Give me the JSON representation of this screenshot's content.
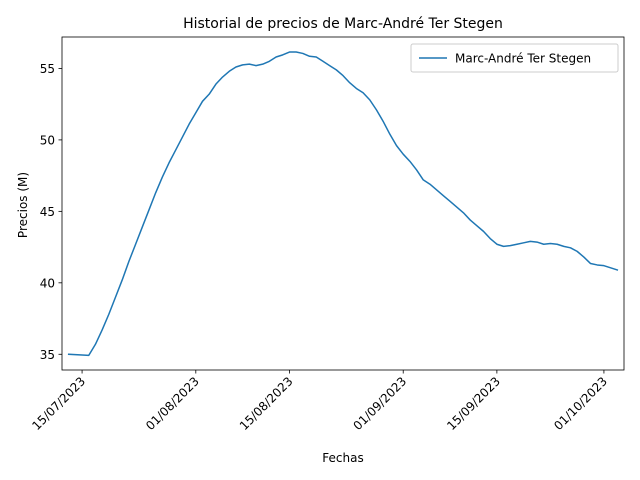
{
  "chart_data": {
    "type": "line",
    "title": "Historial de precios de Marc-André Ter Stegen",
    "xlabel": "Fechas",
    "ylabel": "Precios (M)",
    "x_ticks": [
      "15/07/2023",
      "01/08/2023",
      "15/08/2023",
      "01/09/2023",
      "15/09/2023",
      "01/10/2023"
    ],
    "y_ticks": [
      35,
      40,
      45,
      50,
      55
    ],
    "x_range": [
      "2023-07-12",
      "2023-10-04"
    ],
    "ylim": [
      33.9,
      57.2
    ],
    "grid": false,
    "legend": {
      "position": "top-right"
    },
    "series": [
      {
        "name": "Marc-André Ter Stegen",
        "color": "#1f77b4",
        "points": [
          [
            "2023-07-13",
            35.0
          ],
          [
            "2023-07-15",
            34.95
          ],
          [
            "2023-07-16",
            34.92
          ],
          [
            "2023-07-17",
            35.7
          ],
          [
            "2023-07-18",
            36.7
          ],
          [
            "2023-07-19",
            37.8
          ],
          [
            "2023-07-20",
            39.0
          ],
          [
            "2023-07-21",
            40.2
          ],
          [
            "2023-07-22",
            41.5
          ],
          [
            "2023-07-23",
            42.7
          ],
          [
            "2023-07-24",
            43.9
          ],
          [
            "2023-07-25",
            45.1
          ],
          [
            "2023-07-26",
            46.3
          ],
          [
            "2023-07-27",
            47.4
          ],
          [
            "2023-07-28",
            48.4
          ],
          [
            "2023-07-29",
            49.3
          ],
          [
            "2023-07-30",
            50.2
          ],
          [
            "2023-07-31",
            51.1
          ],
          [
            "2023-08-01",
            51.9
          ],
          [
            "2023-08-02",
            52.7
          ],
          [
            "2023-08-03",
            53.2
          ],
          [
            "2023-08-04",
            53.9
          ],
          [
            "2023-08-05",
            54.4
          ],
          [
            "2023-08-06",
            54.8
          ],
          [
            "2023-08-07",
            55.1
          ],
          [
            "2023-08-08",
            55.25
          ],
          [
            "2023-08-09",
            55.3
          ],
          [
            "2023-08-10",
            55.2
          ],
          [
            "2023-08-11",
            55.3
          ],
          [
            "2023-08-12",
            55.5
          ],
          [
            "2023-08-13",
            55.8
          ],
          [
            "2023-08-14",
            55.95
          ],
          [
            "2023-08-15",
            56.15
          ],
          [
            "2023-08-16",
            56.15
          ],
          [
            "2023-08-17",
            56.05
          ],
          [
            "2023-08-18",
            55.85
          ],
          [
            "2023-08-19",
            55.8
          ],
          [
            "2023-08-20",
            55.5
          ],
          [
            "2023-08-21",
            55.2
          ],
          [
            "2023-08-22",
            54.9
          ],
          [
            "2023-08-23",
            54.5
          ],
          [
            "2023-08-24",
            54.0
          ],
          [
            "2023-08-25",
            53.6
          ],
          [
            "2023-08-26",
            53.3
          ],
          [
            "2023-08-27",
            52.8
          ],
          [
            "2023-08-28",
            52.1
          ],
          [
            "2023-08-29",
            51.3
          ],
          [
            "2023-08-30",
            50.4
          ],
          [
            "2023-08-31",
            49.6
          ],
          [
            "2023-09-01",
            49.0
          ],
          [
            "2023-09-02",
            48.5
          ],
          [
            "2023-09-03",
            47.9
          ],
          [
            "2023-09-04",
            47.2
          ],
          [
            "2023-09-05",
            46.9
          ],
          [
            "2023-09-06",
            46.5
          ],
          [
            "2023-09-07",
            46.1
          ],
          [
            "2023-09-08",
            45.7
          ],
          [
            "2023-09-09",
            45.3
          ],
          [
            "2023-09-10",
            44.9
          ],
          [
            "2023-09-11",
            44.4
          ],
          [
            "2023-09-12",
            44.0
          ],
          [
            "2023-09-13",
            43.6
          ],
          [
            "2023-09-14",
            43.1
          ],
          [
            "2023-09-15",
            42.7
          ],
          [
            "2023-09-16",
            42.55
          ],
          [
            "2023-09-17",
            42.6
          ],
          [
            "2023-09-18",
            42.7
          ],
          [
            "2023-09-19",
            42.8
          ],
          [
            "2023-09-20",
            42.9
          ],
          [
            "2023-09-21",
            42.85
          ],
          [
            "2023-09-22",
            42.7
          ],
          [
            "2023-09-23",
            42.75
          ],
          [
            "2023-09-24",
            42.7
          ],
          [
            "2023-09-25",
            42.55
          ],
          [
            "2023-09-26",
            42.45
          ],
          [
            "2023-09-27",
            42.2
          ],
          [
            "2023-09-28",
            41.8
          ],
          [
            "2023-09-29",
            41.35
          ],
          [
            "2023-09-30",
            41.25
          ],
          [
            "2023-10-01",
            41.2
          ],
          [
            "2023-10-02",
            41.05
          ],
          [
            "2023-10-03",
            40.9
          ]
        ]
      }
    ]
  }
}
